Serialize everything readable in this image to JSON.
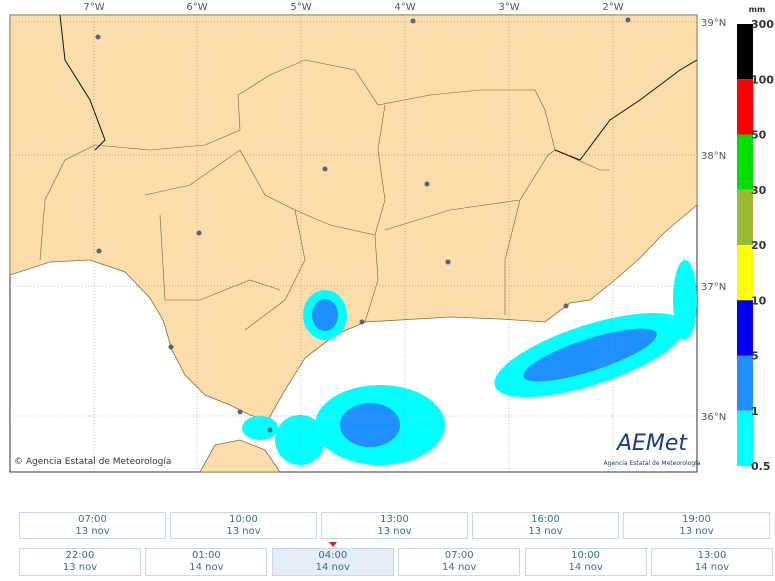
{
  "map": {
    "longitude_labels": [
      "7°W",
      "6°W",
      "5°W",
      "4°W",
      "3°W",
      "2°W"
    ],
    "latitude_labels": [
      "39°N",
      "38°N",
      "37°N",
      "36°N"
    ],
    "attribution": "© Agencia Estatal de Meteorología",
    "logo": "AEMet",
    "logo_subtitle": "Agencia Estatal de Meteorología"
  },
  "legend": {
    "unit": "mm",
    "levels": [
      300,
      100,
      50,
      30,
      20,
      10,
      5,
      1,
      0.5
    ],
    "colors": [
      "#000000",
      "#ff0000",
      "#00dd00",
      "#99bb33",
      "#ffff00",
      "#0000ee",
      "#1e90ff",
      "#00ffff"
    ]
  },
  "timeline": {
    "rows": [
      [
        {
          "time": "07:00",
          "date": "13 nov"
        },
        {
          "time": "10:00",
          "date": "13 nov"
        },
        {
          "time": "13:00",
          "date": "13 nov"
        },
        {
          "time": "16:00",
          "date": "13 nov"
        },
        {
          "time": "19:00",
          "date": "13 nov"
        }
      ],
      [
        {
          "time": "22:00",
          "date": "13 nov"
        },
        {
          "time": "01:00",
          "date": "14 nov"
        },
        {
          "time": "04:00",
          "date": "14 nov"
        },
        {
          "time": "07:00",
          "date": "14 nov"
        },
        {
          "time": "10:00",
          "date": "14 nov"
        },
        {
          "time": "13:00",
          "date": "14 nov"
        }
      ]
    ],
    "selected": [
      1,
      2
    ]
  }
}
